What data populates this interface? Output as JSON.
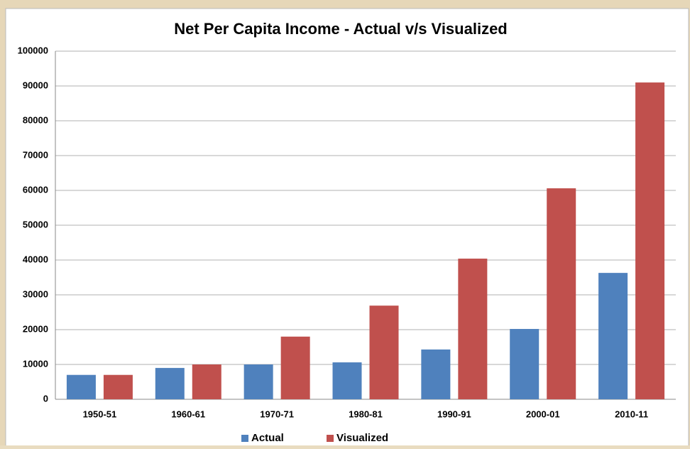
{
  "chart_data": {
    "type": "bar",
    "title": "Net Per Capita Income - Actual v/s Visualized",
    "categories": [
      "1950-51",
      "1960-61",
      "1970-71",
      "1980-81",
      "1990-91",
      "2000-01",
      "2010-11"
    ],
    "series": [
      {
        "name": "Actual",
        "color": "#4f81bd",
        "values": [
          7000,
          9000,
          10000,
          10600,
          14300,
          20200,
          36300
        ]
      },
      {
        "name": "Visualized",
        "color": "#c0504d",
        "values": [
          7000,
          10000,
          18000,
          26900,
          40400,
          60600,
          91000
        ]
      }
    ],
    "ylim": [
      0,
      100000
    ],
    "yticks": [
      0,
      10000,
      20000,
      30000,
      40000,
      50000,
      60000,
      70000,
      80000,
      90000,
      100000
    ],
    "grid": true,
    "legend": "bottom"
  }
}
